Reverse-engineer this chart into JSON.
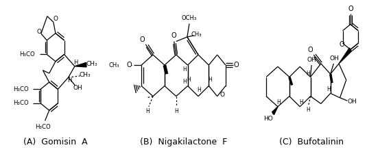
{
  "background_color": "#ffffff",
  "labels": [
    "(A)  Gomisin  A",
    "(B)  Nigakilactone  F",
    "(C)  Bufotalinin"
  ],
  "label_fontsize": 9,
  "fig_width": 5.35,
  "fig_height": 2.25,
  "dpi": 100
}
